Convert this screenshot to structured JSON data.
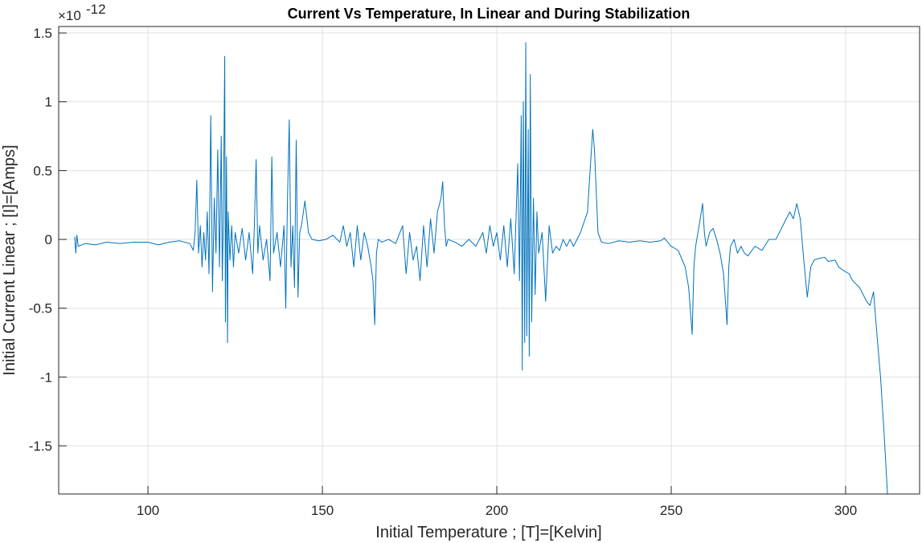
{
  "chart_data": {
    "type": "line",
    "title": "Current Vs Temperature, In Linear and During Stabilization",
    "xlabel": "Initial Temperature ; [T]=[Kelvin]",
    "ylabel": "Initial Current Linear ; [I]=[Amps]",
    "y_exponent_base": "×10",
    "y_exponent": "-12",
    "color": "#0072bd",
    "grid": true,
    "xlim": [
      74.4,
      321.2
    ],
    "ylim": [
      -1.85,
      1.547
    ],
    "xticks": [
      100,
      150,
      200,
      250,
      300
    ],
    "yticks": [
      -1.5,
      -1,
      -0.5,
      0,
      0.5,
      1,
      1.5
    ],
    "x": [
      79,
      79.3,
      79.6,
      80,
      82,
      85,
      88,
      92,
      96,
      100,
      103,
      106,
      109,
      112,
      113,
      113.5,
      114,
      114.5,
      115,
      115.5,
      116,
      116.5,
      117,
      117.5,
      118,
      118.5,
      119,
      119.5,
      120,
      120.5,
      121,
      121.3,
      121.6,
      122,
      122.2,
      122.5,
      122.8,
      123,
      123.5,
      124,
      124.5,
      125,
      126,
      127,
      128,
      129,
      130,
      130.5,
      131,
      131.5,
      132,
      133,
      134,
      135,
      135.5,
      136,
      137,
      138,
      139,
      139.5,
      140,
      140.5,
      141,
      141.5,
      142,
      142.5,
      143,
      143.5,
      144,
      145,
      146,
      147,
      149,
      151,
      153,
      155,
      156,
      157,
      158,
      159,
      160,
      161,
      162,
      163,
      164,
      164.5,
      165,
      165.5,
      166,
      167,
      169,
      171,
      173,
      174,
      175,
      176,
      177,
      178,
      179,
      180,
      181,
      182,
      183,
      184,
      184.5,
      185,
      185.5,
      186,
      188,
      190,
      192,
      194,
      196,
      197,
      198,
      199,
      200,
      201,
      202,
      203,
      204,
      205,
      206,
      206.5,
      207,
      207.3,
      207.6,
      208,
      208.3,
      208.6,
      209,
      209.3,
      209.6,
      210,
      210.5,
      211,
      211.5,
      212,
      213,
      214,
      215,
      216,
      217,
      218,
      219,
      220,
      221,
      222,
      224,
      226,
      227,
      227.5,
      228,
      229,
      230,
      232,
      235,
      238,
      241,
      244,
      247,
      248,
      250,
      252,
      254,
      255,
      256,
      256.5,
      257,
      258,
      259,
      259.5,
      260,
      261,
      262,
      263,
      264,
      265,
      266,
      266.5,
      267,
      268,
      269,
      270,
      271,
      272,
      274,
      276,
      278,
      280,
      282,
      284,
      285,
      286,
      287,
      288,
      289,
      290,
      291,
      292,
      294,
      295,
      297,
      298,
      299,
      301,
      302,
      304,
      306,
      307,
      308,
      309,
      310,
      311,
      312
    ],
    "values": [
      0.02,
      -0.1,
      0.03,
      -0.05,
      -0.03,
      -0.04,
      -0.02,
      -0.03,
      -0.02,
      -0.02,
      -0.04,
      -0.02,
      -0.01,
      -0.03,
      -0.08,
      0.05,
      0.43,
      -0.1,
      0.1,
      -0.2,
      0.05,
      -0.15,
      0.2,
      -0.25,
      0.9,
      -0.38,
      0.3,
      -0.1,
      0.65,
      -0.2,
      0.75,
      -0.3,
      0.15,
      1.33,
      -0.6,
      0.6,
      -0.75,
      0.2,
      -0.15,
      0.1,
      -0.2,
      0.05,
      -0.1,
      0.08,
      -0.15,
      0.05,
      -0.25,
      0.1,
      0.58,
      -0.1,
      0.1,
      -0.15,
      0,
      -0.3,
      0.6,
      -0.1,
      0.05,
      -0.2,
      0.1,
      -0.5,
      0.3,
      0.87,
      -0.2,
      0.1,
      -0.35,
      0.72,
      -0.42,
      0.05,
      0.1,
      0.28,
      0.05,
      0,
      -0.01,
      0,
      0.03,
      -0.02,
      0.1,
      -0.05,
      0.05,
      -0.2,
      0.1,
      -0.15,
      0.05,
      -0.05,
      -0.2,
      -0.3,
      -0.62,
      -0.1,
      0,
      -0.02,
      0,
      -0.03,
      0.1,
      -0.25,
      0.05,
      -0.15,
      -0.05,
      -0.3,
      0.1,
      -0.2,
      0.15,
      -0.1,
      0.2,
      0.3,
      0.42,
      0.1,
      -0.05,
      0,
      -0.02,
      -0.05,
      0,
      -0.05,
      0.05,
      -0.1,
      0.1,
      -0.05,
      0.05,
      -0.15,
      0.1,
      -0.2,
      0.15,
      -0.25,
      0.55,
      -0.3,
      0.9,
      -0.95,
      1,
      -0.75,
      1.43,
      -0.7,
      0.8,
      -0.85,
      1.2,
      -0.6,
      0.3,
      -0.4,
      0.2,
      -0.1,
      0.05,
      -0.45,
      0.1,
      -0.1,
      -0.05,
      -0.08,
      0,
      -0.05,
      0,
      -0.05,
      0.05,
      0.2,
      0.6,
      0.8,
      0.65,
      0.05,
      -0.02,
      -0.03,
      -0.01,
      -0.02,
      -0.01,
      -0.02,
      -0.01,
      0.01,
      -0.05,
      -0.08,
      -0.2,
      -0.35,
      -0.69,
      -0.2,
      -0.05,
      0.1,
      0.26,
      0.05,
      -0.05,
      0.05,
      0.08,
      0,
      -0.1,
      -0.25,
      -0.62,
      -0.2,
      -0.05,
      0,
      -0.1,
      -0.05,
      -0.1,
      -0.12,
      -0.05,
      -0.08,
      0,
      0,
      0.1,
      0.2,
      0.15,
      0.26,
      0.15,
      -0.15,
      -0.42,
      -0.2,
      -0.15,
      -0.14,
      -0.13,
      -0.16,
      -0.15,
      -0.2,
      -0.22,
      -0.25,
      -0.3,
      -0.35,
      -0.45,
      -0.48,
      -0.38,
      -0.7,
      -1,
      -1.4,
      -1.85
    ]
  }
}
